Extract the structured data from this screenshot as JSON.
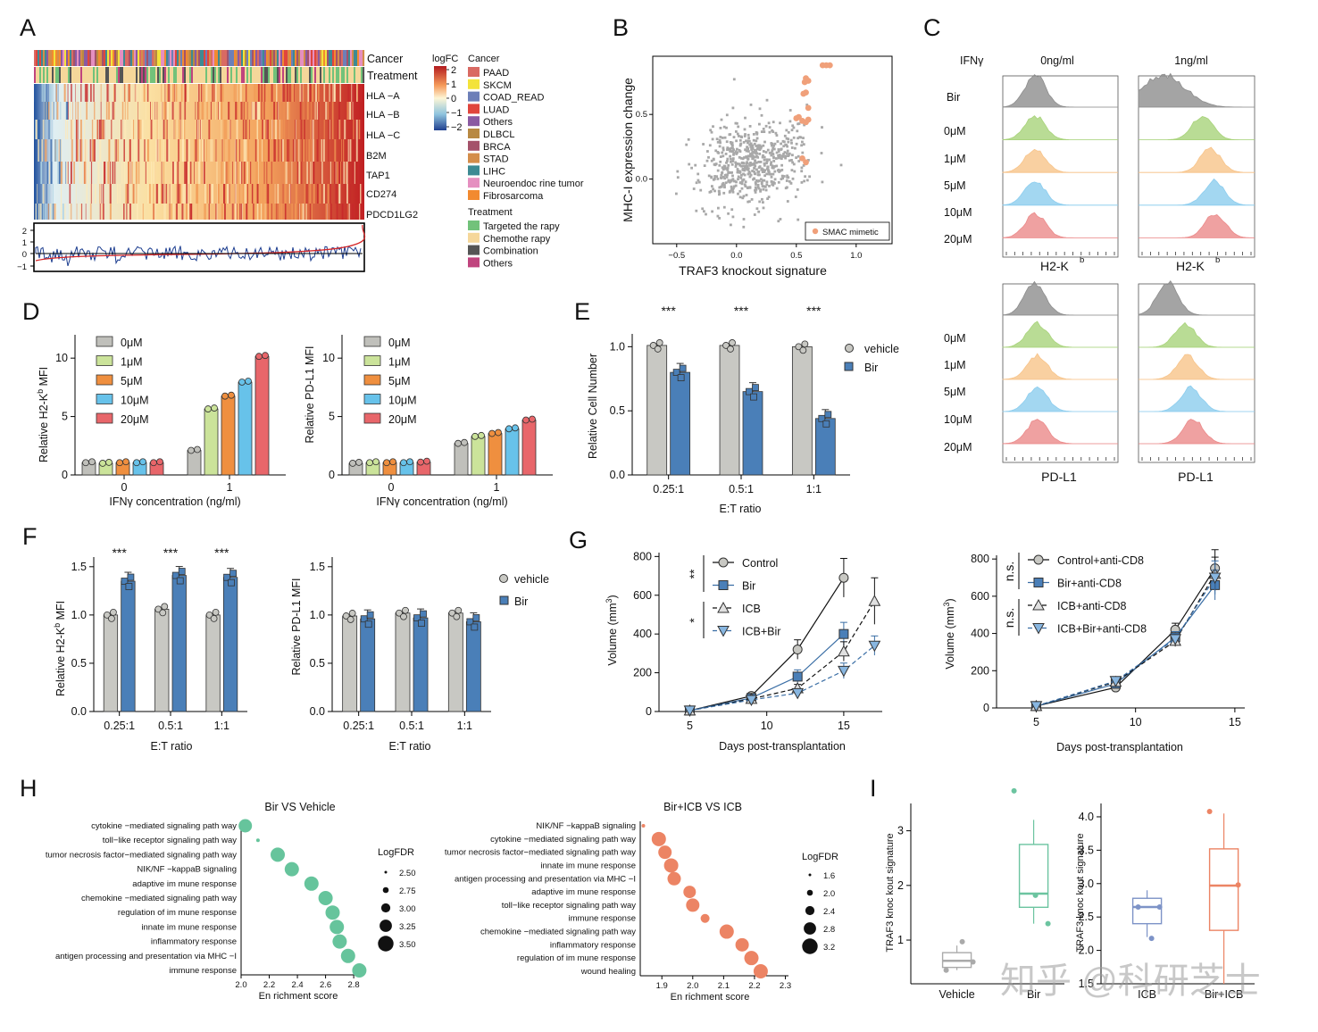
{
  "panels": [
    "A",
    "B",
    "C",
    "D",
    "E",
    "F",
    "G",
    "H",
    "I"
  ],
  "A": {
    "row_labels": [
      "Cancer",
      "Treatment",
      "HLA −A",
      "HLA −B",
      "HLA −C",
      "B2M",
      "TAP1",
      "CD274",
      "PDCD1LG2"
    ],
    "logfc_title": "logFC",
    "logfc_ticks": [
      "2",
      "1",
      "0",
      "−1",
      "−2"
    ],
    "cancer_title": "Cancer",
    "cancer_legend": [
      {
        "name": "PAAD",
        "color": "#d96a63"
      },
      {
        "name": "SKCM",
        "color": "#f3e33b"
      },
      {
        "name": "COAD_READ",
        "color": "#6d7fb8"
      },
      {
        "name": "LUAD",
        "color": "#e0453d"
      },
      {
        "name": "Others",
        "color": "#8a5aa2"
      },
      {
        "name": "DLBCL",
        "color": "#b88942"
      },
      {
        "name": "BRCA",
        "color": "#a4526a"
      },
      {
        "name": "STAD",
        "color": "#d48d4a"
      },
      {
        "name": "LIHC",
        "color": "#3d8a93"
      },
      {
        "name": "Neuroendoc rine tumor",
        "color": "#e58fc0"
      },
      {
        "name": "Fibrosarcoma",
        "color": "#f28a30"
      }
    ],
    "treatment_title": "Treatment",
    "treatment_legend": [
      {
        "name": "Targeted the rapy",
        "color": "#72c27a"
      },
      {
        "name": "Chemothe rapy",
        "color": "#f5d79a"
      },
      {
        "name": "Combination",
        "color": "#555555"
      },
      {
        "name": "Others",
        "color": "#c0447e"
      }
    ],
    "line_ticks": [
      "2",
      "1",
      "0",
      "−1"
    ]
  },
  "B": {
    "ylabel": "MHC-I expression change",
    "xlabel": "TRAF3 knockout signature",
    "xticks": [
      "−0.5",
      "0.0",
      "0.5",
      "1.0"
    ],
    "yticks": [
      "0.5",
      "0.0"
    ],
    "legend": "SMAC mimetic",
    "highlight_color": "#f0a07a"
  },
  "C": {
    "ifn_label": "IFNγ",
    "conditions": [
      "0ng/ml",
      "1ng/ml"
    ],
    "bir_label": "Bir",
    "doses": [
      "0μM",
      "1μM",
      "5μM",
      "10μM",
      "20μM"
    ],
    "markers": [
      "H2-K",
      "PD-L1"
    ],
    "marker_sup": "b",
    "colors": [
      "#8d8d8d",
      "#a8d37a",
      "#f7c48a",
      "#8ccdee",
      "#eb8a8a"
    ]
  },
  "D": {
    "legend": [
      "0μM",
      "1μM",
      "5μM",
      "10μM",
      "20μM"
    ],
    "colors": [
      "#c0c0bb",
      "#cbe39a",
      "#ef8f3f",
      "#67c2ea",
      "#e8666a"
    ],
    "ylabel_left": "Relative H2-K",
    "ylabel_left_sup": "b",
    "ylabel_left_tail": " MFI",
    "ylabel_right": "Relative PD-L1 MFI",
    "xlabel": "IFNγ concentration (ng/ml)",
    "xticks": [
      "0",
      "1"
    ],
    "yticks": [
      "0",
      "5",
      "10"
    ]
  },
  "E": {
    "ylabel": "Relative Cell Number",
    "xlabel": "E:T ratio",
    "xticks": [
      "0.25:1",
      "0.5:1",
      "1:1"
    ],
    "yticks": [
      "0.0",
      "0.5",
      "1.0"
    ],
    "sig": [
      "***",
      "***",
      "***"
    ],
    "legend": [
      "vehicle",
      "Bir"
    ]
  },
  "F": {
    "ylabel_left": "Relative H2-K",
    "ylabel_left_sup": "b",
    "ylabel_left_tail": " MFI",
    "ylabel_right": "Relative PD-L1 MFI",
    "xlabel": "E:T ratio",
    "xticks": [
      "0.25:1",
      "0.5:1",
      "1:1"
    ],
    "yticks": [
      "0.0",
      "0.5",
      "1.0",
      "1.5"
    ],
    "sig": [
      "***",
      "***",
      "***"
    ],
    "legend": [
      "vehicle",
      "Bir"
    ]
  },
  "G": {
    "ylabel": "Volume (mm",
    "ylabel_sup": "3",
    "ylabel_tail": ")",
    "xlabel": "Days post-transplantation",
    "xticks": [
      "5",
      "10",
      "15"
    ],
    "yticks": [
      "0",
      "200",
      "400",
      "600",
      "800"
    ],
    "legend_left": [
      "Control",
      "Bir",
      "ICB",
      "ICB+Bir"
    ],
    "legend_right": [
      "Control+anti-CD8",
      "Bir+anti-CD8",
      "ICB+anti-CD8",
      "ICB+Bir+anti-CD8"
    ],
    "sig_left": [
      "**",
      "*"
    ],
    "sig_right": [
      "n.s.",
      "n.s."
    ]
  },
  "H": {
    "left_title": "Bir VS   Vehicle",
    "right_title": "Bir+ICB VS ICB",
    "xlabel": "En richment score",
    "size_title": "LogFDR",
    "left_terms": [
      "cytokine −mediated signaling path way",
      "toll−like receptor signaling path way",
      "tumor necrosis   factor−mediated signaling path way",
      "NIK/NF   −kappaB signaling",
      "adaptive im mune response",
      "chemokine −mediated signaling path way",
      "regulation of im mune response",
      "innate im mune response",
      "inflammatory response",
      "antigen processing and presentation via MHC      −I",
      "immune response"
    ],
    "right_terms": [
      "NIK/NF   −kappaB signaling",
      "cytokine −mediated signaling path way",
      "tumor necrosis   factor−mediated signaling path way",
      "innate im mune response",
      "antigen processing and presentation via MHC       −I",
      "adaptive im mune response",
      "toll−like receptor signaling path way",
      "immune response",
      "chemokine −mediated signaling path way",
      "inflammatory response",
      "regulation of im mune response",
      "wound healing"
    ],
    "left_xticks": [
      "2.0",
      "2.2",
      "2.4",
      "2.6",
      "2.8"
    ],
    "right_xticks": [
      "1.9",
      "2.0",
      "2.1",
      "2.2",
      "2.3"
    ],
    "left_size_ticks": [
      "2.50",
      "2.75",
      "3.00",
      "3.25",
      "3.50"
    ],
    "right_size_ticks": [
      "1.6",
      "2.0",
      "2.4",
      "2.8",
      "3.2"
    ],
    "left_color": "#66c49c",
    "right_color": "#ec8464"
  },
  "I": {
    "ylabel": "TRAF3 knoc   kout signature",
    "left_groups": [
      "Vehicle",
      "Bir"
    ],
    "right_groups": [
      "ICB",
      "Bir+ICB"
    ],
    "left_yticks": [
      "1",
      "2",
      "3"
    ],
    "right_yticks": [
      "1.5",
      "2.0",
      "2.5",
      "3.0",
      "3.5",
      "4.0"
    ],
    "colors": [
      "#aaaaaa",
      "#6cc4a0",
      "#7d93c7",
      "#ec8464"
    ]
  },
  "watermark": "知乎 @科研芝士"
}
